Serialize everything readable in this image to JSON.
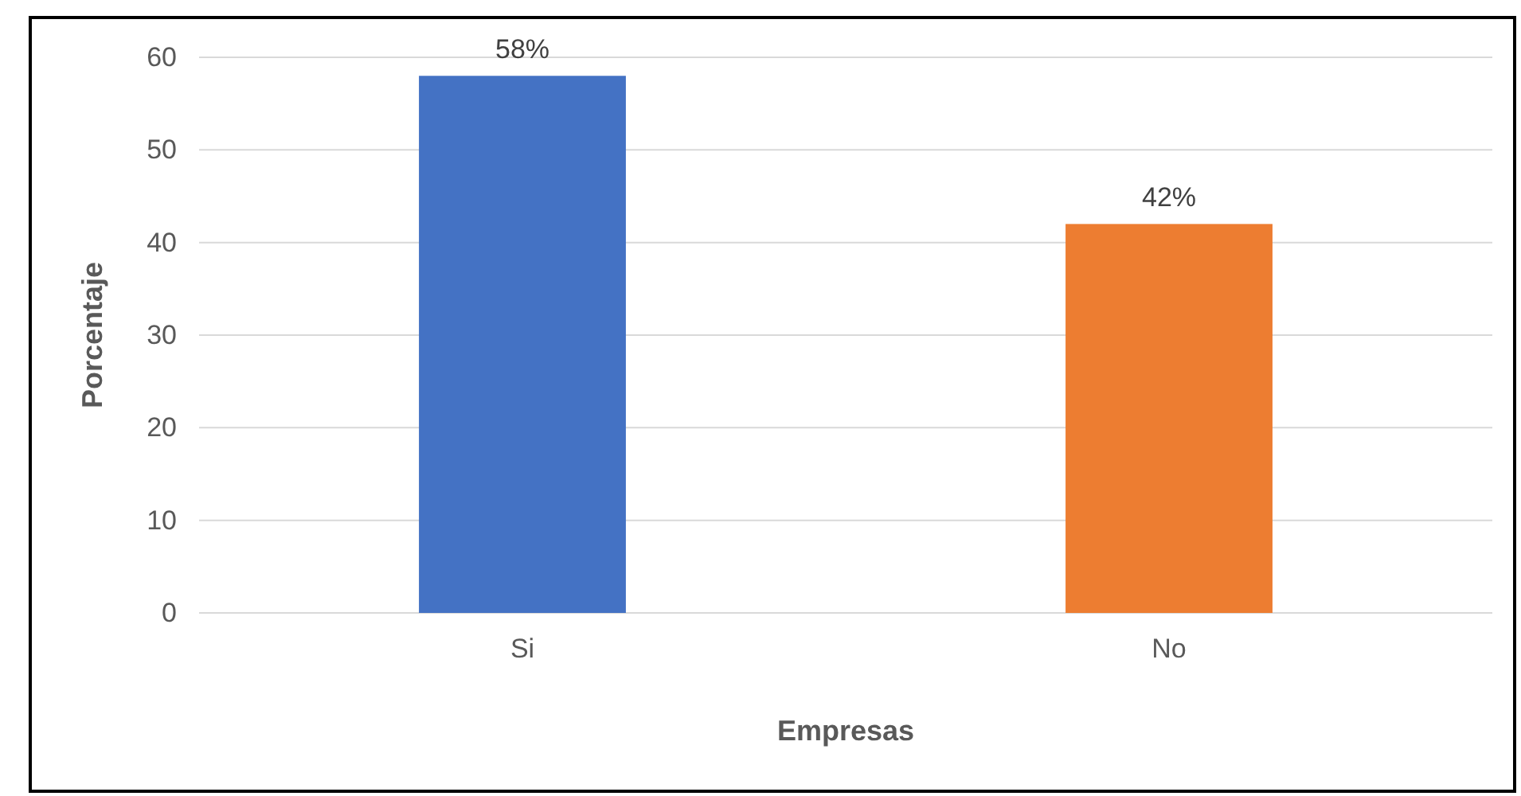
{
  "chart_data": {
    "type": "bar",
    "xlabel": "Empresas",
    "ylabel": "Porcentaje",
    "categories": [
      "Si",
      "No"
    ],
    "values": [
      58,
      42
    ],
    "colors": [
      "#4472c4",
      "#ed7d31"
    ],
    "value_labels": [
      "58%",
      "42%"
    ],
    "ylim": [
      0,
      60
    ],
    "yticks": [
      0,
      10,
      20,
      30,
      40,
      50,
      60
    ],
    "grid": "y"
  }
}
